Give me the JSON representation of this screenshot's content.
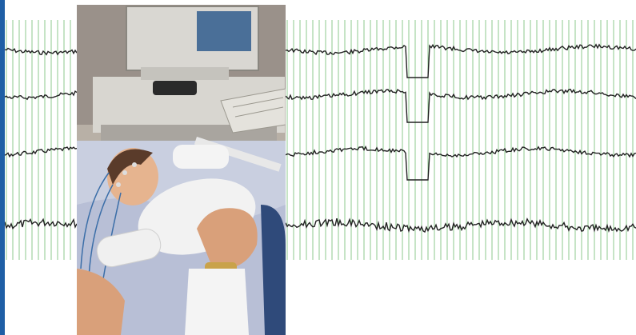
{
  "colors": {
    "edge_bar": "#1f5fa6",
    "grid_line": "#8cc98c",
    "trace": "#222222",
    "background": "#ffffff"
  },
  "eeg": {
    "channels": 4
  },
  "photo": {
    "subject": "infant-eeg-monitoring-photo"
  }
}
